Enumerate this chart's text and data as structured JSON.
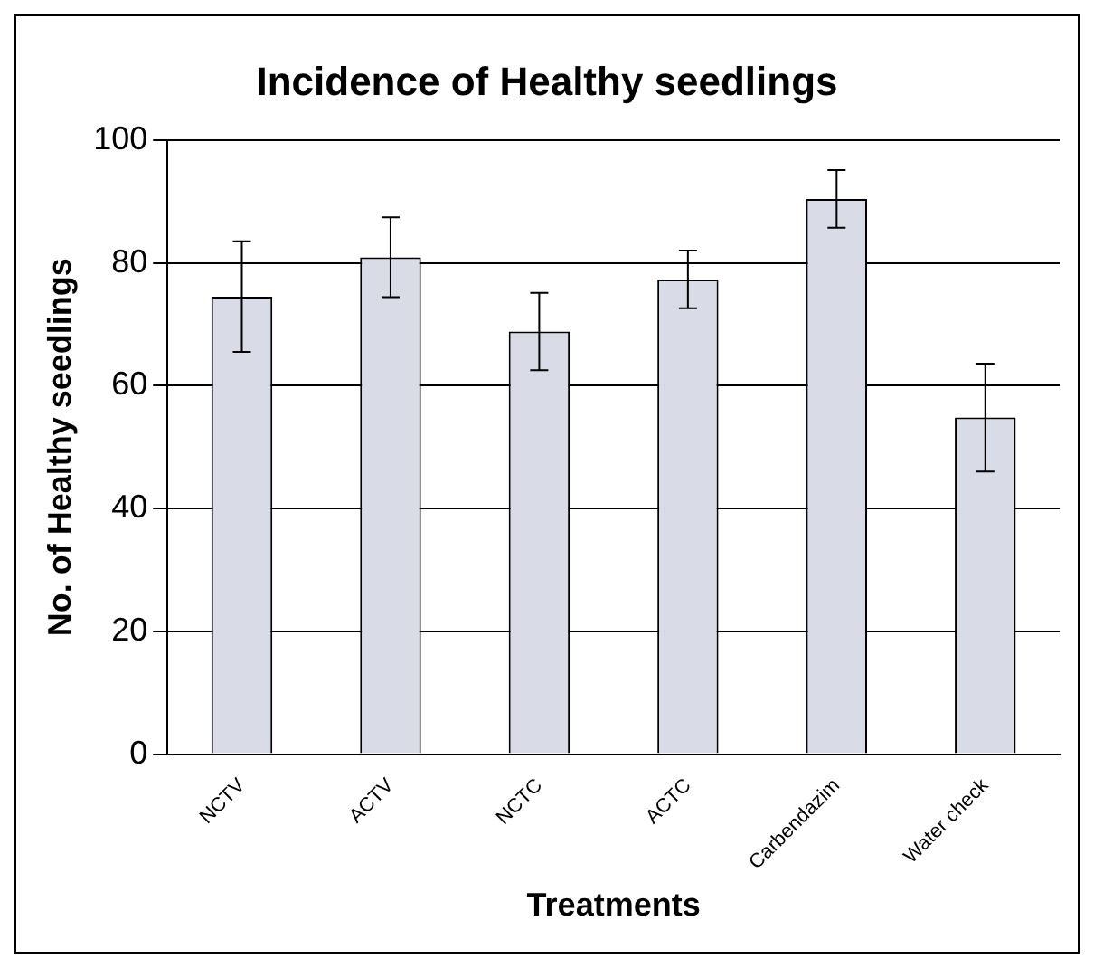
{
  "chart_data": {
    "type": "bar",
    "title": "Incidence of Healthy seedlings",
    "xlabel": "Treatments",
    "ylabel": "No. of Healthy seedlings",
    "categories": [
      "NCTV",
      "ACTV",
      "NCTC",
      "ACTC",
      "Carbendazim",
      "Water check"
    ],
    "values": [
      74.5,
      80.9,
      68.8,
      77.3,
      90.4,
      54.8
    ],
    "errors": [
      9,
      6.5,
      6.3,
      4.7,
      4.7,
      8.8
    ],
    "color": "#d9dce6",
    "ylim": [
      0,
      100
    ],
    "yticks": [
      0,
      20,
      40,
      60,
      80,
      100
    ],
    "grid": "y",
    "legend": false
  }
}
